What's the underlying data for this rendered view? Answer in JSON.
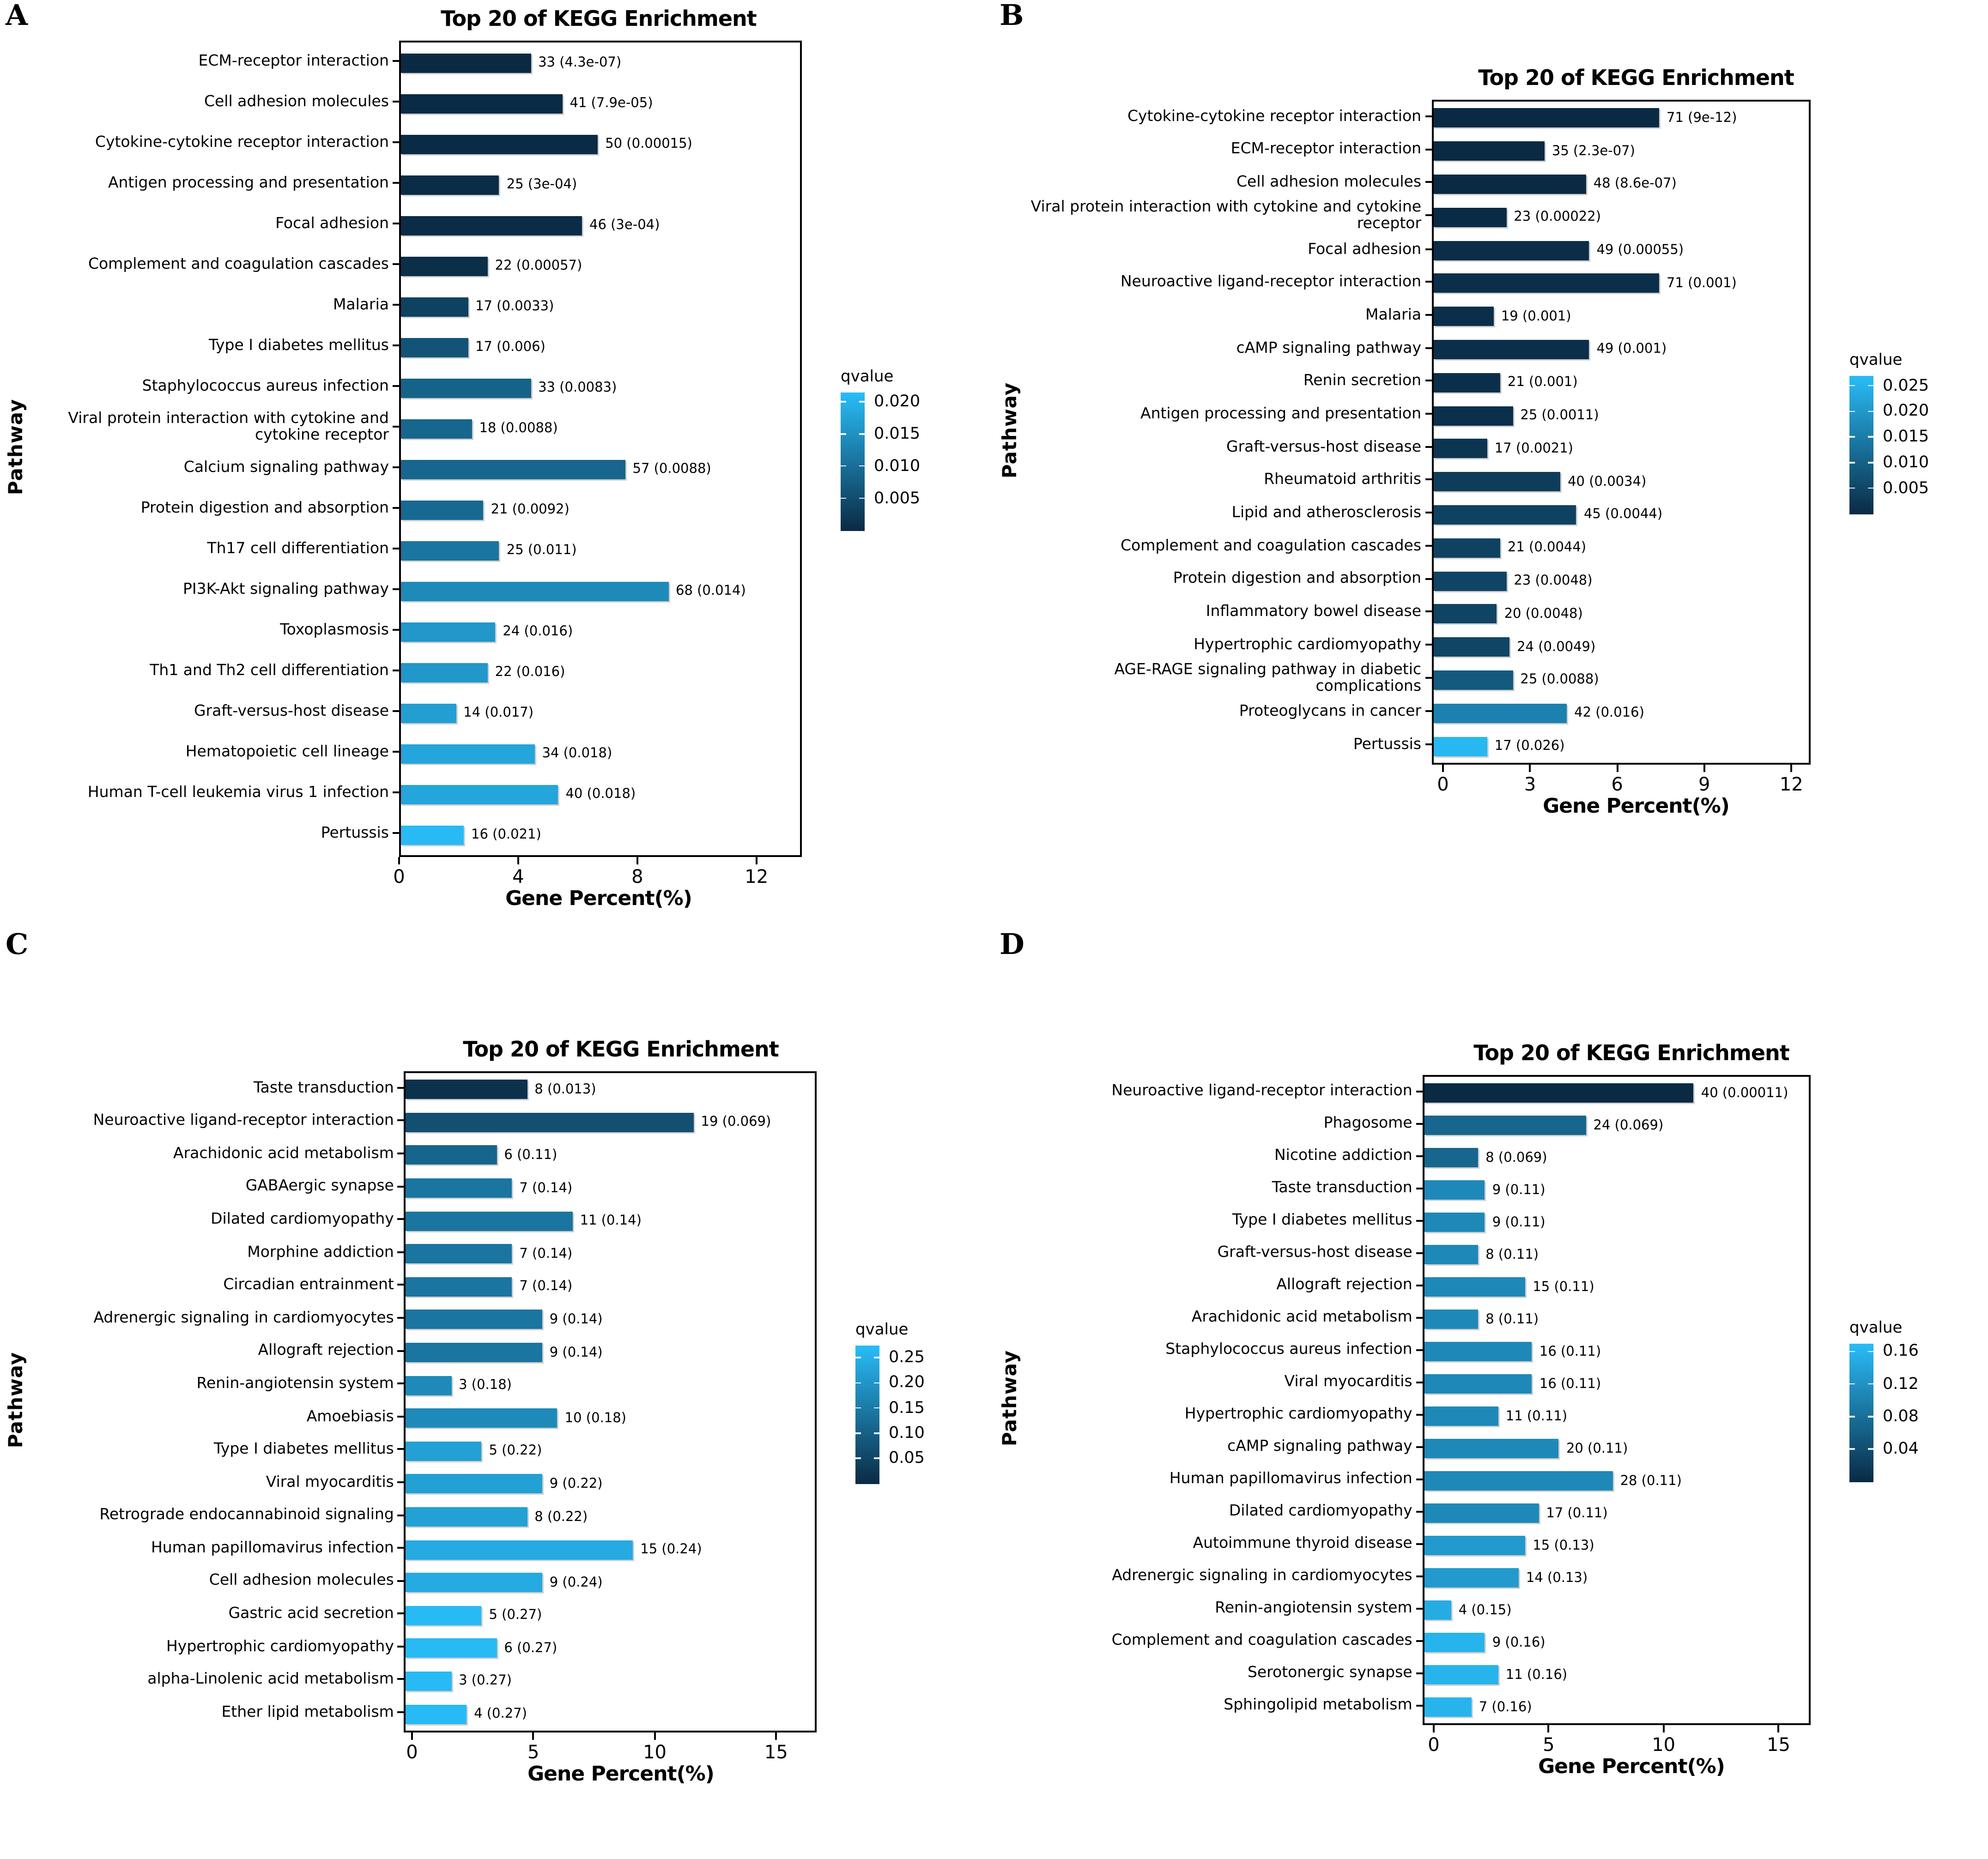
{
  "figure": {
    "panel_letters": [
      "A",
      "B",
      "C",
      "D"
    ]
  },
  "chart_data": [
    {
      "type": "bar",
      "panel": "A",
      "title": "Top 20 of KEGG Enrichment",
      "xlabel": "Gene Percent(%)",
      "ylabel": "Pathway",
      "x_range": [
        0,
        13.4
      ],
      "xticks": [
        0,
        4,
        8,
        12
      ],
      "xtick_labels": [
        "0",
        "4",
        "8",
        "12"
      ],
      "legend": {
        "title": "qvalue",
        "min": 0,
        "max": 0.0215,
        "ticks": [
          0.02,
          0.015,
          0.01,
          0.005
        ],
        "tick_labels": [
          "0.020",
          "0.015",
          "0.010",
          "0.005"
        ]
      },
      "colormap": {
        "dark": "#0a2a44",
        "light": "#29bdf8"
      },
      "categories": [
        "ECM-receptor interaction",
        "Cell adhesion molecules",
        "Cytokine-cytokine receptor interaction",
        "Antigen processing and presentation",
        "Focal adhesion",
        "Complement and coagulation cascades",
        "Malaria",
        "Type I diabetes mellitus",
        "Staphylococcus aureus infection",
        "Viral protein interaction with cytokine and cytokine receptor",
        "Calcium signaling pathway",
        "Protein digestion and absorption",
        "Th17 cell differentiation",
        "PI3K-Akt signaling pathway",
        "Toxoplasmosis",
        "Th1 and Th2 cell differentiation",
        "Graft-versus-host disease",
        "Hematopoietic cell lineage",
        "Human T-cell leukemia virus 1 infection",
        "Pertussis"
      ],
      "values": [
        4.36,
        5.42,
        6.61,
        3.3,
        6.08,
        2.91,
        2.25,
        2.25,
        4.36,
        2.38,
        7.53,
        2.77,
        3.3,
        8.98,
        3.17,
        2.91,
        1.85,
        4.49,
        5.28,
        2.11
      ],
      "counts": [
        33,
        41,
        50,
        25,
        46,
        22,
        17,
        17,
        33,
        18,
        57,
        21,
        25,
        68,
        24,
        22,
        14,
        34,
        40,
        16
      ],
      "qvalues": [
        4.3e-07,
        7.9e-05,
        0.00015,
        0.0003,
        0.0003,
        0.00057,
        0.0033,
        0.006,
        0.0083,
        0.0088,
        0.0088,
        0.0092,
        0.011,
        0.014,
        0.016,
        0.016,
        0.017,
        0.018,
        0.018,
        0.021
      ],
      "labels": [
        "33 (4.3e-07)",
        "41 (7.9e-05)",
        "50 (0.00015)",
        "25 (3e-04)",
        "46 (3e-04)",
        "22 (0.00057)",
        "17 (0.0033)",
        "17 (0.006)",
        "33 (0.0083)",
        "18 (0.0088)",
        "57 (0.0088)",
        "21 (0.0092)",
        "25 (0.011)",
        "68 (0.014)",
        "24 (0.016)",
        "22 (0.016)",
        "14 (0.017)",
        "34 (0.018)",
        "40 (0.018)",
        "16 (0.021)"
      ]
    },
    {
      "type": "bar",
      "panel": "B",
      "title": "Top 20 of KEGG Enrichment",
      "xlabel": "Gene Percent(%)",
      "ylabel": "Pathway",
      "x_range": [
        0,
        13.3
      ],
      "xticks": [
        0,
        3,
        6,
        9,
        12
      ],
      "xtick_labels": [
        "0",
        "3",
        "6",
        "9",
        "12"
      ],
      "legend": {
        "title": "qvalue",
        "min": 0,
        "max": 0.027,
        "ticks": [
          0.025,
          0.02,
          0.015,
          0.01,
          0.005
        ],
        "tick_labels": [
          "0.025",
          "0.020",
          "0.015",
          "0.010",
          "0.005"
        ]
      },
      "colormap": {
        "dark": "#0a2a44",
        "light": "#29bdf8"
      },
      "categories": [
        "Cytokine-cytokine receptor interaction",
        "ECM-receptor interaction",
        "Cell adhesion molecules",
        "Viral protein interaction with cytokine and cytokine receptor",
        "Focal adhesion",
        "Neuroactive ligand-receptor interaction",
        "Malaria",
        "cAMP signaling pathway",
        "Renin secretion",
        "Antigen processing and presentation",
        "Graft-versus-host disease",
        "Rheumatoid arthritis",
        "Lipid and atherosclerosis",
        "Complement and coagulation cascades",
        "Protein digestion and absorption",
        "Inflammatory bowel disease",
        "Hypertrophic cardiomyopathy",
        "AGE-RAGE signaling pathway in diabetic complications",
        "Proteoglycans in cancer",
        "Pertussis"
      ],
      "values": [
        8.0,
        3.94,
        5.41,
        2.59,
        5.52,
        8.0,
        2.14,
        5.52,
        2.37,
        2.82,
        1.91,
        4.5,
        5.07,
        2.37,
        2.59,
        2.25,
        2.7,
        2.82,
        4.73,
        1.91
      ],
      "counts": [
        71,
        35,
        48,
        23,
        49,
        71,
        19,
        49,
        21,
        25,
        17,
        40,
        45,
        21,
        23,
        20,
        24,
        25,
        42,
        17
      ],
      "qvalues": [
        9e-12,
        2.3e-07,
        8.6e-07,
        0.00022,
        0.00055,
        0.001,
        0.001,
        0.001,
        0.001,
        0.0011,
        0.0021,
        0.0034,
        0.0044,
        0.0044,
        0.0048,
        0.0048,
        0.0049,
        0.0088,
        0.016,
        0.026
      ],
      "labels": [
        "71 (9e-12)",
        "35 (2.3e-07)",
        "48 (8.6e-07)",
        "23 (0.00022)",
        "49 (0.00055)",
        "71 (0.001)",
        "19 (0.001)",
        "49 (0.001)",
        "21 (0.001)",
        "25 (0.0011)",
        "17 (0.0021)",
        "40 (0.0034)",
        "45 (0.0044)",
        "21 (0.0044)",
        "23 (0.0048)",
        "20 (0.0048)",
        "24 (0.0049)",
        "25 (0.0088)",
        "42 (0.016)",
        "17 (0.026)"
      ]
    },
    {
      "type": "bar",
      "panel": "C",
      "title": "Top 20 of KEGG Enrichment",
      "xlabel": "Gene Percent(%)",
      "ylabel": "Pathway",
      "x_range": [
        0,
        17.2
      ],
      "xticks": [
        0,
        5,
        10,
        15
      ],
      "xtick_labels": [
        "0",
        "5",
        "10",
        "15"
      ],
      "legend": {
        "title": "qvalue",
        "min": 0,
        "max": 0.275,
        "ticks": [
          0.25,
          0.2,
          0.15,
          0.1,
          0.05
        ],
        "tick_labels": [
          "0.25",
          "0.20",
          "0.15",
          "0.10",
          "0.05"
        ]
      },
      "colormap": {
        "dark": "#0a2a44",
        "light": "#29bdf8"
      },
      "categories": [
        "Taste transduction",
        "Neuroactive ligand-receptor interaction",
        "Arachidonic acid metabolism",
        "GABAergic synapse",
        "Dilated cardiomyopathy",
        "Morphine addiction",
        "Circadian entrainment",
        "Adrenergic signaling in cardiomyocytes",
        "Allograft rejection",
        "Renin-angiotensin system",
        "Amoebiasis",
        "Type I diabetes mellitus",
        "Viral myocarditis",
        "Retrograde endocannabinoid signaling",
        "Human papillomavirus infection",
        "Cell adhesion molecules",
        "Gastric acid secretion",
        "Hypertrophic cardiomyopathy",
        "alpha-Linolenic acid metabolism",
        "Ether lipid metabolism"
      ],
      "values": [
        5.1,
        12.1,
        3.82,
        4.46,
        7.01,
        4.46,
        4.46,
        5.73,
        5.73,
        1.91,
        6.37,
        3.18,
        5.73,
        5.1,
        9.55,
        5.73,
        3.18,
        3.82,
        1.91,
        2.55
      ],
      "counts": [
        8,
        19,
        6,
        7,
        11,
        7,
        7,
        9,
        9,
        3,
        10,
        5,
        9,
        8,
        15,
        9,
        5,
        6,
        3,
        4
      ],
      "qvalues": [
        0.013,
        0.069,
        0.11,
        0.14,
        0.14,
        0.14,
        0.14,
        0.14,
        0.14,
        0.18,
        0.18,
        0.22,
        0.22,
        0.22,
        0.24,
        0.24,
        0.27,
        0.27,
        0.27,
        0.27
      ],
      "labels": [
        "8 (0.013)",
        "19 (0.069)",
        "6 (0.11)",
        "7 (0.14)",
        "11 (0.14)",
        "7 (0.14)",
        "7 (0.14)",
        "9 (0.14)",
        "9 (0.14)",
        "3 (0.18)",
        "10 (0.18)",
        "5 (0.22)",
        "9 (0.22)",
        "8 (0.22)",
        "15 (0.24)",
        "9 (0.24)",
        "5 (0.27)",
        "6 (0.27)",
        "3 (0.27)",
        "4 (0.27)"
      ]
    },
    {
      "type": "bar",
      "panel": "D",
      "title": "Top 20 of KEGG Enrichment",
      "xlabel": "Gene Percent(%)",
      "ylabel": "Pathway",
      "x_range": [
        0,
        17.2
      ],
      "xticks": [
        0,
        5,
        10,
        15
      ],
      "xtick_labels": [
        "0",
        "5",
        "10",
        "15"
      ],
      "legend": {
        "title": "qvalue",
        "min": 0,
        "max": 0.17,
        "ticks": [
          0.16,
          0.12,
          0.08,
          0.04
        ],
        "tick_labels": [
          "0.16",
          "0.12",
          "0.08",
          "0.04"
        ]
      },
      "colormap": {
        "dark": "#0a2a44",
        "light": "#29bdf8"
      },
      "categories": [
        "Neuroactive ligand-receptor interaction",
        "Phagosome",
        "Nicotine addiction",
        "Taste transduction",
        "Type I diabetes mellitus",
        "Graft-versus-host disease",
        "Allograft rejection",
        "Arachidonic acid metabolism",
        "Staphylococcus aureus infection",
        "Viral myocarditis",
        "Hypertrophic cardiomyopathy",
        "cAMP signaling pathway",
        "Human papillomavirus infection",
        "Dilated cardiomyopathy",
        "Autoimmune thyroid disease",
        "Adrenergic signaling in cardiomyocytes",
        "Renin-angiotensin system",
        "Complement and coagulation cascades",
        "Serotonergic synapse",
        "Sphingolipid metabolism"
      ],
      "values": [
        12.05,
        7.23,
        2.41,
        2.71,
        2.71,
        2.41,
        4.52,
        2.41,
        4.82,
        4.82,
        3.31,
        6.02,
        8.43,
        5.12,
        4.52,
        4.22,
        1.2,
        2.71,
        3.31,
        2.11
      ],
      "counts": [
        40,
        24,
        8,
        9,
        9,
        8,
        15,
        8,
        16,
        16,
        11,
        20,
        28,
        17,
        15,
        14,
        4,
        9,
        11,
        7
      ],
      "qvalues": [
        0.00011,
        0.069,
        0.069,
        0.11,
        0.11,
        0.11,
        0.11,
        0.11,
        0.11,
        0.11,
        0.11,
        0.11,
        0.11,
        0.11,
        0.13,
        0.13,
        0.15,
        0.16,
        0.16,
        0.16
      ],
      "labels": [
        "40 (0.00011)",
        "24 (0.069)",
        "8 (0.069)",
        "9 (0.11)",
        "9 (0.11)",
        "8 (0.11)",
        "15 (0.11)",
        "8 (0.11)",
        "16 (0.11)",
        "16 (0.11)",
        "11 (0.11)",
        "20 (0.11)",
        "28 (0.11)",
        "17 (0.11)",
        "15 (0.13)",
        "14 (0.13)",
        "4 (0.15)",
        "9 (0.16)",
        "11 (0.16)",
        "7 (0.16)"
      ]
    }
  ]
}
